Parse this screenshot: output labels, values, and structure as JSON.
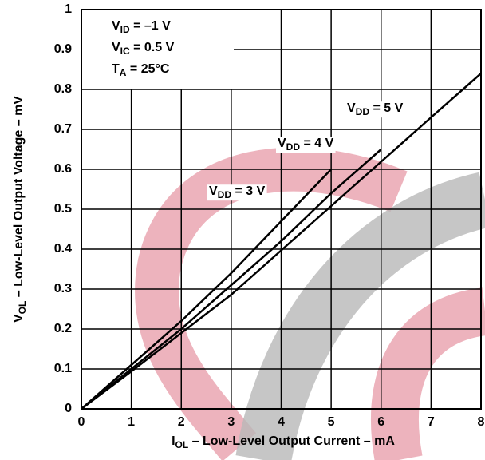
{
  "chart_data": {
    "type": "line",
    "x": [
      0,
      1,
      2,
      3,
      4,
      5,
      6,
      7,
      8
    ],
    "series": [
      {
        "label": [
          "V",
          "DD",
          " = 3 V"
        ],
        "color": "#000000",
        "values": [
          0,
          0.11,
          0.22,
          0.34,
          0.47,
          0.6,
          null,
          null,
          null
        ]
      },
      {
        "label": [
          "V",
          "DD",
          " = 4 V"
        ],
        "color": "#000000",
        "values": [
          0,
          0.1,
          0.2,
          0.31,
          0.42,
          0.54,
          0.65,
          null,
          null
        ]
      },
      {
        "label": [
          "V",
          "DD",
          " = 5 V"
        ],
        "color": "#000000",
        "values": [
          0,
          0.094,
          0.19,
          0.286,
          0.397,
          0.508,
          0.619,
          0.73,
          0.84
        ]
      }
    ],
    "conditions": [
      [
        "V",
        "ID",
        " = –1 V"
      ],
      [
        "V",
        "IC",
        " = 0.5 V"
      ],
      [
        "T",
        "A",
        " = 25°C"
      ]
    ],
    "xlabel": [
      "I",
      "OL",
      " – Low-Level Output Current – mA"
    ],
    "ylabel": [
      "V",
      "OL",
      " – Low-Level Output Voltage – mV"
    ],
    "xlim": [
      0,
      8
    ],
    "xticks": [
      0,
      1,
      2,
      3,
      4,
      5,
      6,
      7,
      8
    ],
    "ylim": [
      0,
      1
    ],
    "yticks": [
      0,
      0.1,
      0.2,
      0.3,
      0.4,
      0.5,
      0.6,
      0.7,
      0.8,
      0.9,
      1
    ],
    "grid": true
  }
}
